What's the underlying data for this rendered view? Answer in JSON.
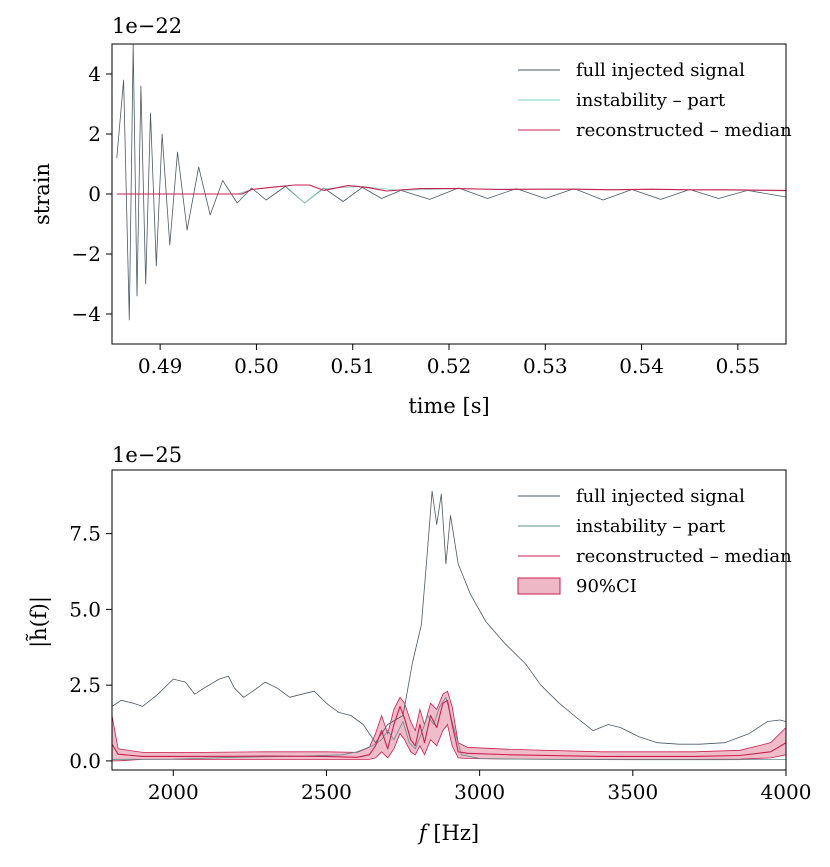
{
  "chart_data": [
    {
      "type": "line",
      "title": "",
      "offset_label": "1e−22",
      "xlabel": "time [s]",
      "ylabel": "strain",
      "xlim": [
        0.485,
        0.555
      ],
      "ylim": [
        -5.0,
        5.0
      ],
      "xticks": [
        0.49,
        0.5,
        0.51,
        0.52,
        0.53,
        0.54,
        0.55
      ],
      "xtick_labels": [
        "0.49",
        "0.50",
        "0.51",
        "0.52",
        "0.53",
        "0.54",
        "0.55"
      ],
      "yticks": [
        -4,
        -2,
        0,
        2,
        4
      ],
      "ytick_labels": [
        "−4",
        "−2",
        "0",
        "2",
        "4"
      ],
      "grid": false,
      "legend_position": "top-right",
      "series": [
        {
          "name": "full injected signal",
          "color": "#4a5a66",
          "points": [
            [
              0.4855,
              1.2
            ],
            [
              0.4862,
              3.8
            ],
            [
              0.4868,
              -4.2
            ],
            [
              0.4872,
              5.0
            ],
            [
              0.4876,
              -3.4
            ],
            [
              0.488,
              3.6
            ],
            [
              0.4885,
              -3.0
            ],
            [
              0.489,
              2.7
            ],
            [
              0.4896,
              -2.4
            ],
            [
              0.4902,
              2.0
            ],
            [
              0.491,
              -1.7
            ],
            [
              0.4918,
              1.4
            ],
            [
              0.4928,
              -1.2
            ],
            [
              0.494,
              0.9
            ],
            [
              0.4952,
              -0.7
            ],
            [
              0.4965,
              0.45
            ],
            [
              0.498,
              -0.3
            ],
            [
              0.4995,
              0.2
            ],
            [
              0.501,
              -0.2
            ],
            [
              0.503,
              0.25
            ],
            [
              0.505,
              -0.3
            ],
            [
              0.507,
              0.2
            ],
            [
              0.509,
              -0.25
            ],
            [
              0.511,
              0.22
            ],
            [
              0.513,
              -0.15
            ],
            [
              0.515,
              0.12
            ],
            [
              0.518,
              -0.18
            ],
            [
              0.521,
              0.2
            ],
            [
              0.524,
              -0.15
            ],
            [
              0.527,
              0.18
            ],
            [
              0.53,
              -0.15
            ],
            [
              0.533,
              0.18
            ],
            [
              0.536,
              -0.2
            ],
            [
              0.539,
              0.15
            ],
            [
              0.542,
              -0.18
            ],
            [
              0.545,
              0.15
            ],
            [
              0.548,
              -0.15
            ],
            [
              0.551,
              0.12
            ],
            [
              0.555,
              -0.1
            ]
          ]
        },
        {
          "name": "instability – part",
          "color": "#7fd1c0",
          "points": [
            [
              0.4855,
              0.0
            ],
            [
              0.498,
              0.0
            ],
            [
              0.4995,
              0.15
            ],
            [
              0.503,
              0.28
            ],
            [
              0.505,
              -0.3
            ],
            [
              0.507,
              0.18
            ],
            [
              0.511,
              0.25
            ],
            [
              0.515,
              0.12
            ],
            [
              0.521,
              0.18
            ],
            [
              0.527,
              0.16
            ],
            [
              0.533,
              0.16
            ],
            [
              0.539,
              0.15
            ],
            [
              0.545,
              0.14
            ],
            [
              0.551,
              0.12
            ],
            [
              0.555,
              0.1
            ]
          ]
        },
        {
          "name": "reconstructed – median",
          "color": "#cc1f50",
          "points": [
            [
              0.4855,
              0.0
            ],
            [
              0.4985,
              0.0
            ],
            [
              0.4995,
              0.15
            ],
            [
              0.5015,
              0.22
            ],
            [
              0.504,
              0.3
            ],
            [
              0.5055,
              0.3
            ],
            [
              0.507,
              0.12
            ],
            [
              0.5095,
              0.28
            ],
            [
              0.5115,
              0.22
            ],
            [
              0.5135,
              0.1
            ],
            [
              0.517,
              0.18
            ],
            [
              0.521,
              0.18
            ],
            [
              0.525,
              0.15
            ],
            [
              0.529,
              0.16
            ],
            [
              0.533,
              0.16
            ],
            [
              0.537,
              0.14
            ],
            [
              0.541,
              0.16
            ],
            [
              0.545,
              0.14
            ],
            [
              0.549,
              0.14
            ],
            [
              0.555,
              0.12
            ]
          ]
        }
      ]
    },
    {
      "type": "line",
      "title": "",
      "offset_label": "1e−25",
      "xlabel_italic": "f",
      "xlabel_rest": " [Hz]",
      "ylabel": "|h̃(f)|",
      "xlim": [
        1800,
        4000
      ],
      "ylim": [
        -0.3,
        9.6
      ],
      "xticks": [
        2000,
        2500,
        3000,
        3500,
        4000
      ],
      "xtick_labels": [
        "2000",
        "2500",
        "3000",
        "3500",
        "4000"
      ],
      "yticks": [
        0.0,
        2.5,
        5.0,
        7.5
      ],
      "ytick_labels": [
        "0.0",
        "2.5",
        "5.0",
        "7.5"
      ],
      "grid": false,
      "legend_position": "top-right",
      "series": [
        {
          "name": "full injected signal",
          "color": "#4a5a66",
          "points": [
            [
              1800,
              1.8
            ],
            [
              1830,
              2.0
            ],
            [
              1870,
              1.9
            ],
            [
              1900,
              1.8
            ],
            [
              1950,
              2.2
            ],
            [
              2000,
              2.7
            ],
            [
              2040,
              2.6
            ],
            [
              2070,
              2.2
            ],
            [
              2100,
              2.4
            ],
            [
              2150,
              2.7
            ],
            [
              2180,
              2.8
            ],
            [
              2200,
              2.4
            ],
            [
              2230,
              2.1
            ],
            [
              2260,
              2.3
            ],
            [
              2300,
              2.6
            ],
            [
              2340,
              2.4
            ],
            [
              2380,
              2.1
            ],
            [
              2420,
              2.2
            ],
            [
              2460,
              2.3
            ],
            [
              2500,
              1.9
            ],
            [
              2540,
              1.6
            ],
            [
              2580,
              1.5
            ],
            [
              2620,
              1.2
            ],
            [
              2660,
              0.6
            ],
            [
              2700,
              1.2
            ],
            [
              2750,
              1.5
            ],
            [
              2780,
              3.2
            ],
            [
              2810,
              4.5
            ],
            [
              2830,
              7.0
            ],
            [
              2845,
              8.9
            ],
            [
              2860,
              7.8
            ],
            [
              2875,
              8.8
            ],
            [
              2890,
              6.5
            ],
            [
              2905,
              8.1
            ],
            [
              2930,
              6.5
            ],
            [
              2970,
              5.5
            ],
            [
              3020,
              4.6
            ],
            [
              3080,
              3.9
            ],
            [
              3150,
              3.2
            ],
            [
              3200,
              2.5
            ],
            [
              3260,
              1.9
            ],
            [
              3320,
              1.4
            ],
            [
              3370,
              1.0
            ],
            [
              3420,
              1.2
            ],
            [
              3460,
              1.1
            ],
            [
              3520,
              0.8
            ],
            [
              3580,
              0.6
            ],
            [
              3650,
              0.55
            ],
            [
              3720,
              0.55
            ],
            [
              3800,
              0.6
            ],
            [
              3880,
              0.9
            ],
            [
              3940,
              1.3
            ],
            [
              3980,
              1.35
            ],
            [
              4000,
              1.3
            ]
          ]
        },
        {
          "name": "instability – part",
          "color": "#5e8f8a",
          "points": [
            [
              1800,
              0.05
            ],
            [
              2000,
              0.06
            ],
            [
              2200,
              0.12
            ],
            [
              2400,
              0.15
            ],
            [
              2550,
              0.2
            ],
            [
              2600,
              0.3
            ],
            [
              2650,
              0.5
            ],
            [
              2680,
              0.7
            ],
            [
              2700,
              1.0
            ],
            [
              2720,
              0.7
            ],
            [
              2750,
              1.3
            ],
            [
              2770,
              0.6
            ],
            [
              2790,
              0.4
            ],
            [
              2810,
              0.9
            ],
            [
              2830,
              1.5
            ],
            [
              2850,
              1.2
            ],
            [
              2870,
              1.8
            ],
            [
              2890,
              2.1
            ],
            [
              2910,
              1.3
            ],
            [
              2940,
              0.2
            ],
            [
              3000,
              0.08
            ],
            [
              3200,
              0.05
            ],
            [
              3500,
              0.04
            ],
            [
              3800,
              0.04
            ],
            [
              4000,
              0.05
            ]
          ]
        },
        {
          "name": "reconstructed – median",
          "color": "#cc1f50",
          "points": [
            [
              1800,
              0.55
            ],
            [
              1820,
              0.22
            ],
            [
              1900,
              0.15
            ],
            [
              2100,
              0.15
            ],
            [
              2300,
              0.16
            ],
            [
              2500,
              0.15
            ],
            [
              2600,
              0.12
            ],
            [
              2640,
              0.2
            ],
            [
              2660,
              0.5
            ],
            [
              2680,
              1.0
            ],
            [
              2700,
              0.4
            ],
            [
              2720,
              1.2
            ],
            [
              2740,
              1.8
            ],
            [
              2755,
              1.4
            ],
            [
              2775,
              0.7
            ],
            [
              2790,
              0.5
            ],
            [
              2805,
              1.2
            ],
            [
              2820,
              0.6
            ],
            [
              2840,
              1.5
            ],
            [
              2860,
              1.1
            ],
            [
              2880,
              1.9
            ],
            [
              2895,
              2.0
            ],
            [
              2910,
              1.2
            ],
            [
              2930,
              0.3
            ],
            [
              2960,
              0.25
            ],
            [
              3100,
              0.2
            ],
            [
              3400,
              0.15
            ],
            [
              3700,
              0.15
            ],
            [
              3850,
              0.18
            ],
            [
              3950,
              0.3
            ],
            [
              4000,
              0.6
            ]
          ]
        }
      ],
      "ci_band": {
        "name": "90%CI",
        "color": "#e8a0b4",
        "x": [
          1800,
          1820,
          1900,
          2100,
          2300,
          2500,
          2600,
          2640,
          2660,
          2680,
          2700,
          2720,
          2740,
          2755,
          2775,
          2790,
          2805,
          2820,
          2840,
          2860,
          2880,
          2895,
          2910,
          2930,
          2960,
          3100,
          3400,
          3700,
          3850,
          3950,
          4000
        ],
        "lower": [
          0.0,
          0.0,
          0.05,
          0.05,
          0.05,
          0.05,
          0.05,
          0.05,
          0.1,
          0.3,
          0.1,
          0.4,
          0.9,
          0.7,
          0.3,
          0.2,
          0.5,
          0.2,
          0.7,
          0.5,
          1.0,
          1.2,
          0.5,
          0.1,
          0.08,
          0.06,
          0.05,
          0.05,
          0.06,
          0.1,
          0.2
        ],
        "upper": [
          1.5,
          0.4,
          0.28,
          0.28,
          0.3,
          0.3,
          0.28,
          0.45,
          0.9,
          1.5,
          0.9,
          1.7,
          2.1,
          1.9,
          1.3,
          1.0,
          1.7,
          1.2,
          1.9,
          1.7,
          2.2,
          2.3,
          1.8,
          0.6,
          0.45,
          0.38,
          0.3,
          0.3,
          0.35,
          0.6,
          1.1
        ]
      }
    }
  ]
}
